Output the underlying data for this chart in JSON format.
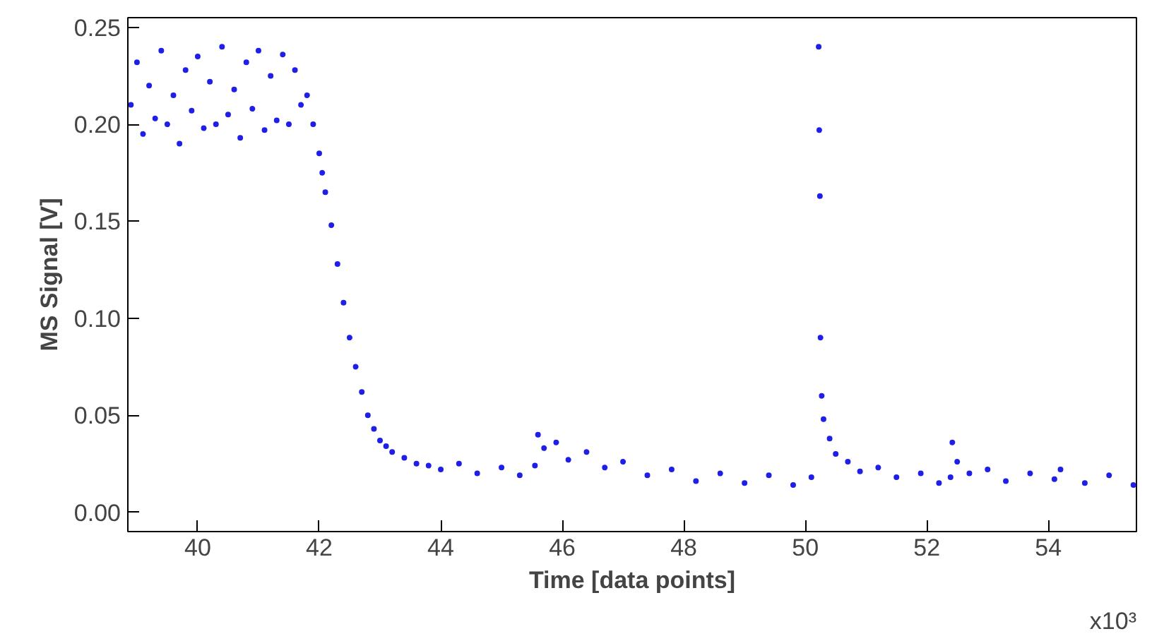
{
  "chart_data": {
    "type": "scatter",
    "xlabel": "Time [data points]",
    "ylabel": "MS Signal [V]",
    "annotations": [
      "x10³"
    ],
    "xlim": [
      38.85,
      55.45
    ],
    "ylim": [
      -0.01,
      0.255
    ],
    "xticks": [
      40,
      42,
      44,
      46,
      48,
      50,
      52,
      54
    ],
    "yticks": [
      {
        "value": 0,
        "label": "0.00"
      },
      {
        "value": 0.05,
        "label": "0.05"
      },
      {
        "value": 0.1,
        "label": "0.10"
      },
      {
        "value": 0.15,
        "label": "0.15"
      },
      {
        "value": 0.2,
        "label": "0.20"
      },
      {
        "value": 0.25,
        "label": "0.25"
      }
    ],
    "grid": false,
    "marker": "circle",
    "series": [
      {
        "color": "#1f1fe8",
        "x": [
          38.9,
          39.0,
          39.1,
          39.2,
          39.3,
          39.4,
          39.5,
          39.6,
          39.7,
          39.8,
          39.9,
          40.0,
          40.1,
          40.2,
          40.3,
          40.4,
          40.5,
          40.6,
          40.7,
          40.8,
          40.9,
          41.0,
          41.1,
          41.2,
          41.3,
          41.4,
          41.5,
          41.6,
          41.7,
          41.8,
          41.9,
          42.0,
          42.05,
          42.1,
          42.2,
          42.3,
          42.4,
          42.5,
          42.6,
          42.7,
          42.8,
          42.9,
          43.0,
          43.1,
          43.2,
          43.4,
          43.6,
          43.8,
          44.0,
          44.3,
          44.6,
          45.0,
          45.3,
          45.55,
          45.6,
          45.7,
          45.9,
          46.1,
          46.4,
          46.7,
          47.0,
          47.4,
          47.8,
          48.2,
          48.6,
          49.0,
          49.4,
          49.8,
          50.1,
          50.22,
          50.23,
          50.24,
          50.25,
          50.27,
          50.3,
          50.4,
          50.5,
          50.7,
          50.9,
          51.2,
          51.5,
          51.9,
          52.2,
          52.39,
          52.42,
          52.5,
          52.7,
          53.0,
          53.3,
          53.7,
          54.1,
          54.2,
          54.6,
          55.0,
          55.4
        ],
        "values": [
          0.21,
          0.232,
          0.195,
          0.22,
          0.203,
          0.238,
          0.2,
          0.215,
          0.19,
          0.228,
          0.207,
          0.235,
          0.198,
          0.222,
          0.2,
          0.24,
          0.205,
          0.218,
          0.193,
          0.232,
          0.208,
          0.238,
          0.197,
          0.225,
          0.202,
          0.236,
          0.2,
          0.228,
          0.21,
          0.215,
          0.2,
          0.185,
          0.175,
          0.165,
          0.148,
          0.128,
          0.108,
          0.09,
          0.075,
          0.062,
          0.05,
          0.043,
          0.037,
          0.034,
          0.031,
          0.028,
          0.025,
          0.024,
          0.022,
          0.025,
          0.02,
          0.023,
          0.019,
          0.024,
          0.04,
          0.033,
          0.036,
          0.027,
          0.031,
          0.023,
          0.026,
          0.019,
          0.022,
          0.016,
          0.02,
          0.015,
          0.019,
          0.014,
          0.018,
          0.24,
          0.197,
          0.163,
          0.09,
          0.06,
          0.048,
          0.038,
          0.03,
          0.026,
          0.021,
          0.023,
          0.018,
          0.02,
          0.015,
          0.018,
          0.036,
          0.026,
          0.02,
          0.022,
          0.016,
          0.02,
          0.017,
          0.022,
          0.015,
          0.019,
          0.014
        ]
      }
    ]
  }
}
